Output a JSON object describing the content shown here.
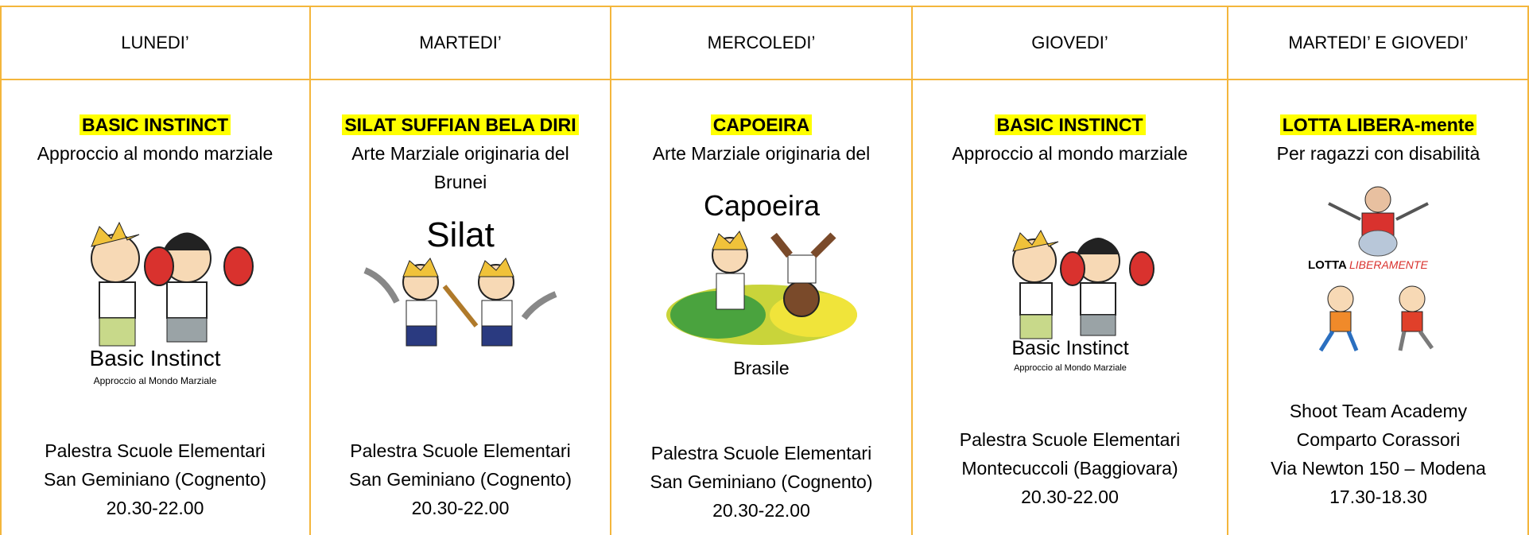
{
  "header": {
    "columns": [
      "LUNEDI’",
      "MARTEDI’",
      "MERCOLEDI’",
      "GIOVEDI’",
      "MARTEDI’ E GIOVEDI’"
    ]
  },
  "columns": [
    {
      "title": "BASIC INSTINCT",
      "description": "Approccio al mondo marziale",
      "image_text": [
        "Basic Instinct",
        "Approccio al Mondo Marziale"
      ],
      "location": [
        "Palestra Scuole Elementari",
        "San Geminiano (Cognento)"
      ],
      "time": "20.30-22.00"
    },
    {
      "title": "SILAT SUFFIAN BELA DIRI",
      "description": "Arte Marziale originaria del Brunei",
      "image_text": [
        "Silat"
      ],
      "location": [
        "Palestra Scuole Elementari",
        "San Geminiano (Cognento)"
      ],
      "time": "20.30-22.00"
    },
    {
      "title": "CAPOEIRA",
      "description": "Arte Marziale originaria del",
      "image_text": [
        "Capoeira"
      ],
      "description_end": "Brasile",
      "location": [
        "Palestra Scuole Elementari",
        "San Geminiano (Cognento)"
      ],
      "time": "20.30-22.00"
    },
    {
      "title": "BASIC INSTINCT",
      "description": "Approccio al mondo marziale",
      "image_text": [
        "Basic Instinct",
        "Approccio al Mondo Marziale"
      ],
      "location": [
        "Palestra Scuole Elementari",
        "Montecuccoli (Baggiovara)"
      ],
      "time": "20.30-22.00"
    },
    {
      "title": "LOTTA LIBERA-mente",
      "description": "Per ragazzi con disabilità",
      "image_text": [
        "LOTTA",
        "LIBERAMENTE"
      ],
      "location": [
        "Shoot Team Academy",
        "Comparto Corassori",
        "Via Newton 150 – Modena"
      ],
      "time": "17.30-18.30"
    }
  ]
}
